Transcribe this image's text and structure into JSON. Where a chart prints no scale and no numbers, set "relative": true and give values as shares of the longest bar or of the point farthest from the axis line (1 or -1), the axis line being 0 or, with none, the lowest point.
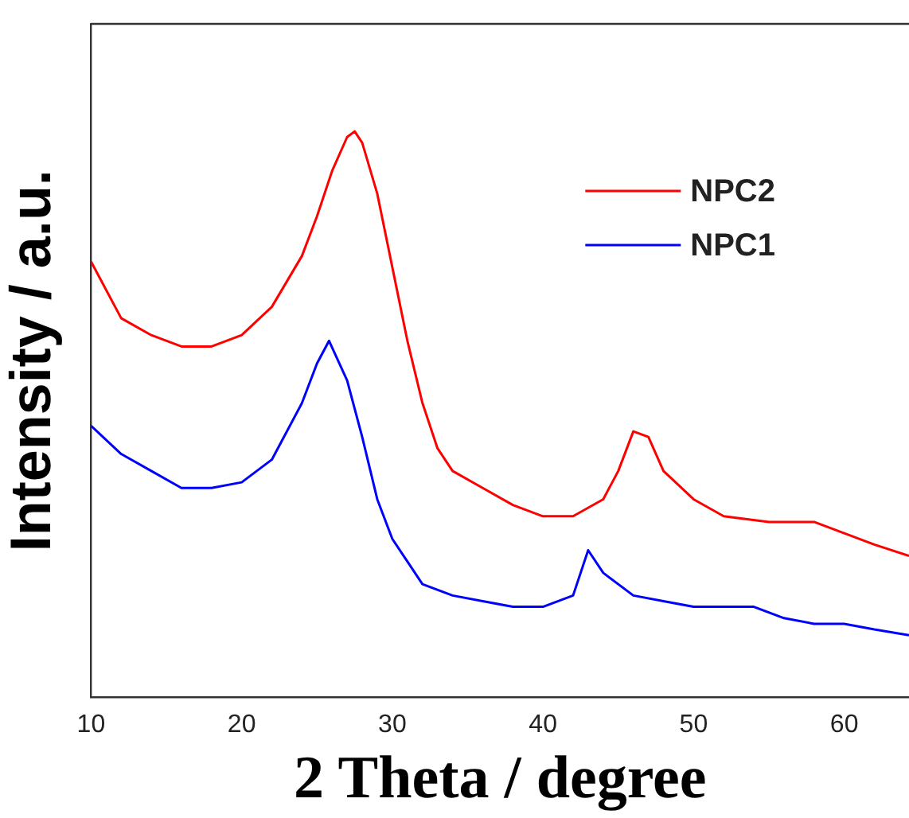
{
  "chart_data": {
    "type": "line",
    "xlabel": "2 Theta / degree",
    "ylabel": "Intensity / a.u.",
    "relative": true,
    "xlim": [
      10,
      64.3
    ],
    "xticks": [
      10,
      20,
      30,
      40,
      50,
      60
    ],
    "legend": "top right",
    "marker": "none",
    "line_style": "solid",
    "series": [
      {
        "name": "NPC2",
        "color": "#ff0000",
        "x": [
          10,
          12,
          14,
          16,
          18,
          20,
          22,
          24,
          25,
          26,
          27,
          27.5,
          28,
          29,
          30,
          31,
          32,
          33,
          34,
          36,
          38,
          40,
          42,
          44,
          45,
          46,
          47,
          48,
          50,
          52,
          55,
          58,
          60,
          62,
          64.3
        ],
        "values": [
          0.77,
          0.67,
          0.64,
          0.62,
          0.62,
          0.64,
          0.69,
          0.78,
          0.85,
          0.93,
          0.99,
          1.0,
          0.98,
          0.89,
          0.76,
          0.63,
          0.52,
          0.44,
          0.4,
          0.37,
          0.34,
          0.32,
          0.32,
          0.35,
          0.4,
          0.47,
          0.46,
          0.4,
          0.35,
          0.32,
          0.31,
          0.31,
          0.29,
          0.27,
          0.25
        ]
      },
      {
        "name": "NPC1",
        "color": "#0000ff",
        "x": [
          10,
          12,
          14,
          16,
          18,
          20,
          22,
          24,
          25,
          25.8,
          27,
          28,
          29,
          30,
          31,
          32,
          34,
          36,
          38,
          40,
          42,
          43,
          44,
          46,
          48,
          50,
          52,
          54,
          56,
          58,
          60,
          62,
          64.3
        ],
        "values": [
          0.48,
          0.43,
          0.4,
          0.37,
          0.37,
          0.38,
          0.42,
          0.52,
          0.59,
          0.63,
          0.56,
          0.46,
          0.35,
          0.28,
          0.24,
          0.2,
          0.18,
          0.17,
          0.16,
          0.16,
          0.18,
          0.26,
          0.22,
          0.18,
          0.17,
          0.16,
          0.16,
          0.16,
          0.14,
          0.13,
          0.13,
          0.12,
          0.11
        ]
      }
    ]
  }
}
